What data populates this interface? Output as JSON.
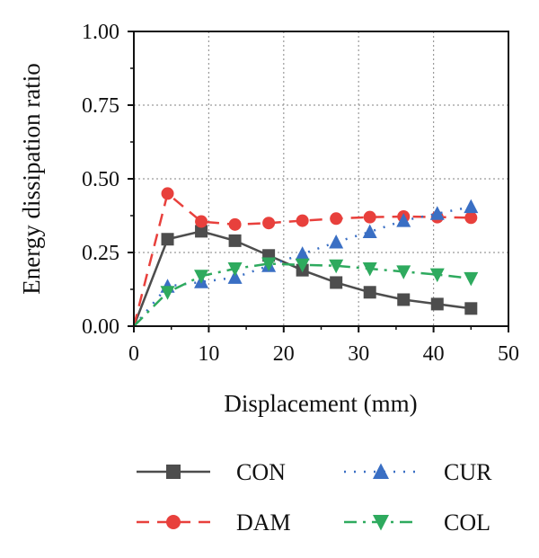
{
  "chart_data": {
    "type": "line",
    "title": "",
    "xlabel": "Displacement (mm)",
    "ylabel": "Energy dissipation ratio",
    "xlim": [
      0,
      50
    ],
    "ylim": [
      0,
      1.0
    ],
    "xticks": [
      "0",
      "10",
      "20",
      "30",
      "40",
      "50"
    ],
    "yticks": [
      "0.00",
      "0.25",
      "0.50",
      "0.75",
      "1.00"
    ],
    "grid": true,
    "legend_position": "bottom",
    "series": [
      {
        "name": "CON",
        "color": "#4d4d4d",
        "marker": "square",
        "line": "solid",
        "x": [
          0,
          4.5,
          9,
          13.5,
          18,
          22.5,
          27,
          31.5,
          36,
          40.5,
          45
        ],
        "y": [
          0,
          0.295,
          0.322,
          0.29,
          0.24,
          0.19,
          0.148,
          0.115,
          0.09,
          0.075,
          0.06
        ]
      },
      {
        "name": "DAM",
        "color": "#e8403c",
        "marker": "circle",
        "line": "dashed",
        "x": [
          0,
          4.5,
          9,
          13.5,
          18,
          22.5,
          27,
          31.5,
          36,
          40.5,
          45
        ],
        "y": [
          0,
          0.45,
          0.355,
          0.345,
          0.35,
          0.358,
          0.365,
          0.37,
          0.372,
          0.37,
          0.368
        ]
      },
      {
        "name": "CUR",
        "color": "#3a6fc4",
        "marker": "triangle-up",
        "line": "dotted",
        "x": [
          0,
          4.5,
          9,
          13.5,
          18,
          22.5,
          27,
          31.5,
          36,
          40.5,
          45
        ],
        "y": [
          0,
          0.135,
          0.15,
          0.165,
          0.205,
          0.245,
          0.285,
          0.32,
          0.358,
          0.382,
          0.405
        ]
      },
      {
        "name": "COL",
        "color": "#2eaa5e",
        "marker": "triangle-down",
        "line": "dashdot",
        "x": [
          0,
          4.5,
          9,
          13.5,
          18,
          22.5,
          27,
          31.5,
          36,
          40.5,
          45
        ],
        "y": [
          0,
          0.115,
          0.17,
          0.195,
          0.212,
          0.208,
          0.205,
          0.195,
          0.185,
          0.175,
          0.162
        ]
      }
    ]
  }
}
